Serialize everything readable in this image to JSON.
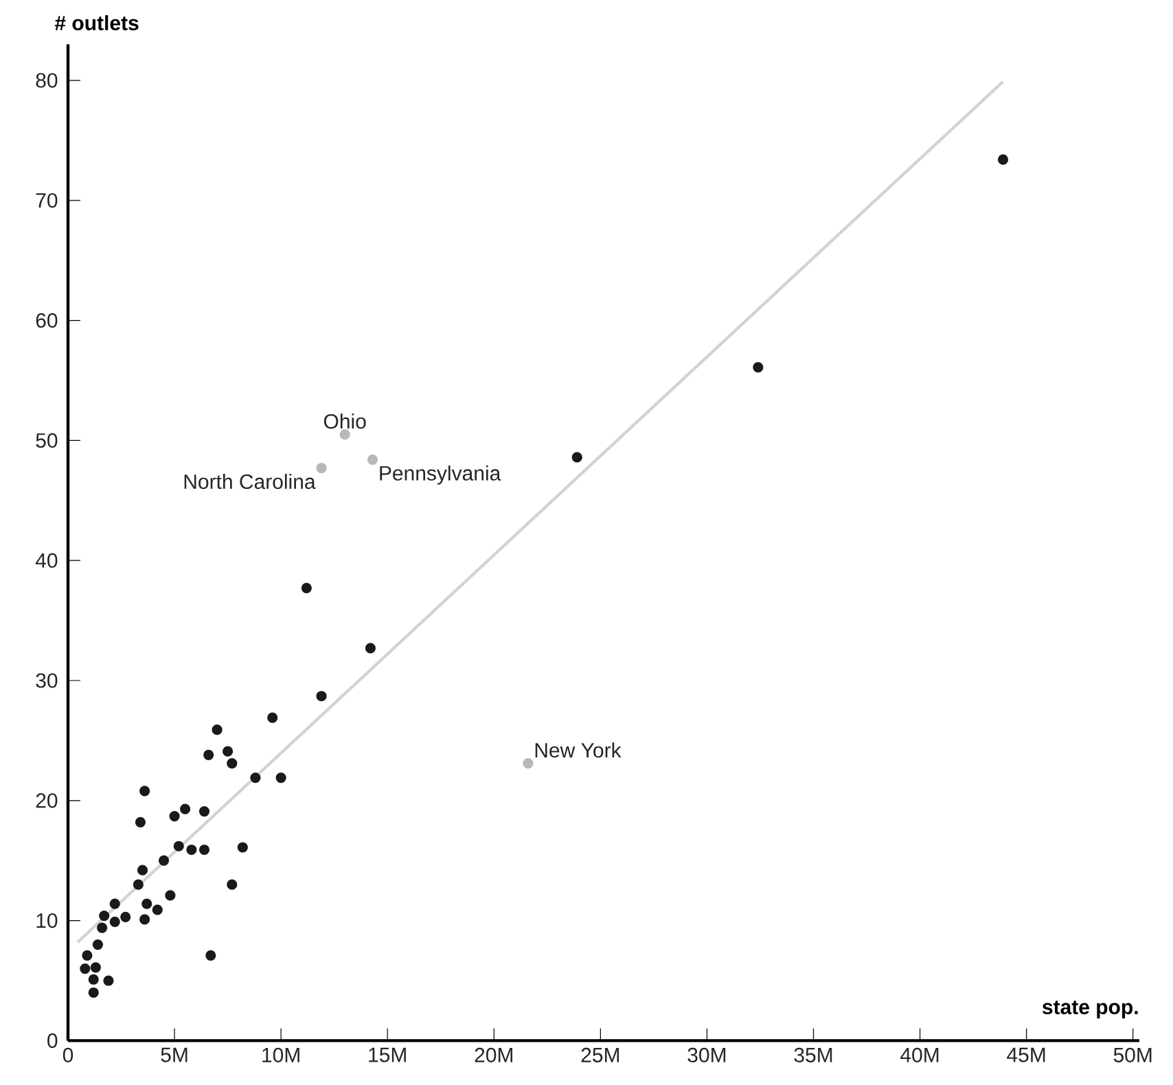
{
  "chart_data": {
    "type": "scatter",
    "xlabel": "state pop.",
    "ylabel": "# outlets",
    "xlim": [
      0,
      50300000
    ],
    "ylim": [
      0,
      83
    ],
    "xticks": [
      0,
      {
        "value": 5000000,
        "label": "5M"
      },
      {
        "value": 10000000,
        "label": "10M"
      },
      {
        "value": 15000000,
        "label": "15M"
      },
      {
        "value": 20000000,
        "label": "20M"
      },
      {
        "value": 25000000,
        "label": "25M"
      },
      {
        "value": 30000000,
        "label": "30M"
      },
      {
        "value": 35000000,
        "label": "35M"
      },
      {
        "value": 40000000,
        "label": "40M"
      },
      {
        "value": 45000000,
        "label": "45M"
      },
      {
        "value": 50000000,
        "label": "50M"
      }
    ],
    "yticks": [
      0,
      10,
      20,
      30,
      40,
      50,
      60,
      70,
      80
    ],
    "grid": false,
    "series": [
      {
        "type": "line",
        "marker": "none",
        "color": "#d3d3d3",
        "x": [
          450000,
          43900000
        ],
        "values": [
          8.2,
          79.9
        ]
      },
      {
        "marker": "circle",
        "color": "#1a1a1a",
        "x": [
          11200000,
          14200000,
          11900000,
          9600000,
          7000000,
          6600000,
          7500000,
          7700000,
          8800000,
          10000000,
          3600000,
          3400000,
          5000000,
          5500000,
          6400000,
          5200000,
          5800000,
          6400000,
          8200000,
          4500000,
          3500000,
          3300000,
          7700000,
          4800000,
          2200000,
          3700000,
          4200000,
          1700000,
          2700000,
          2200000,
          3600000,
          1600000,
          1400000,
          6700000,
          900000,
          800000,
          1300000,
          1200000,
          1900000,
          1200000,
          23900000,
          32400000,
          43900000
        ],
        "values": [
          37.7,
          32.7,
          28.7,
          26.9,
          25.9,
          23.8,
          24.1,
          23.1,
          21.9,
          21.9,
          20.8,
          18.2,
          18.7,
          19.3,
          19.1,
          16.2,
          15.9,
          15.9,
          16.1,
          15.0,
          14.2,
          13.0,
          13.0,
          12.1,
          11.4,
          11.4,
          10.9,
          10.4,
          10.3,
          9.9,
          10.1,
          9.4,
          8.0,
          7.1,
          7.1,
          6.0,
          6.1,
          5.1,
          5.0,
          4.0,
          48.6,
          56.1,
          73.4
        ]
      },
      {
        "marker": "circle",
        "color": "#b8b8b8",
        "x": [
          13000000,
          11900000,
          14300000,
          21600000
        ],
        "values": [
          50.5,
          47.7,
          48.4,
          23.1
        ]
      }
    ],
    "annotations": [
      {
        "text": "Ohio",
        "x": 13000000,
        "y": 50.5
      },
      {
        "text": "North Carolina",
        "x": 11900000,
        "y": 47.7
      },
      {
        "text": "Pennsylvania",
        "x": 14300000,
        "y": 48.4
      },
      {
        "text": "New York",
        "x": 21600000,
        "y": 23.1
      }
    ]
  }
}
